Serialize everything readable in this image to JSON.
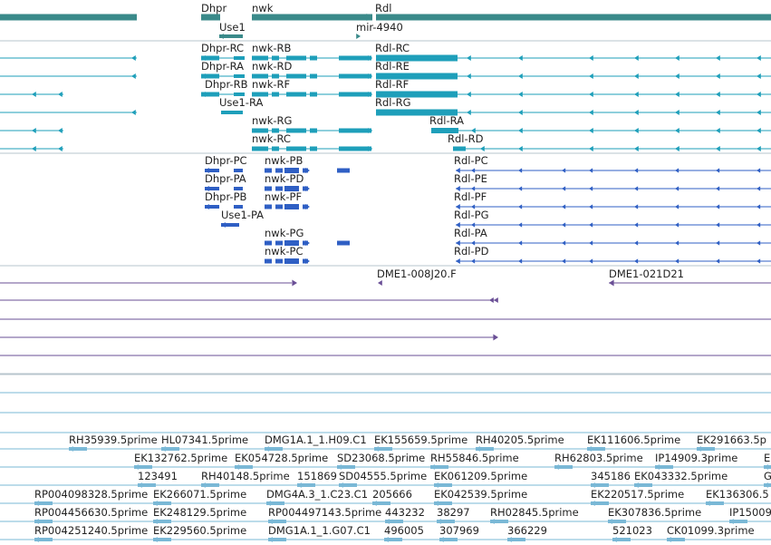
{
  "colors": {
    "gene": "#3a8a8a",
    "mrna": "#1e9fba",
    "cds": "#2f5fc4",
    "clone": "#6a4f96",
    "est": "#7ab8d6",
    "divider": "#b7c4cc"
  },
  "genes": [
    {
      "label": "Dhpr"
    },
    {
      "label": "nwk"
    },
    {
      "label": "Rdl"
    },
    {
      "label": "Use1"
    },
    {
      "label": "mir-4940"
    }
  ],
  "transcripts": [
    {
      "label": "Dhpr-RC"
    },
    {
      "label": "nwk-RB"
    },
    {
      "label": "Rdl-RC"
    },
    {
      "label": "Dhpr-RA"
    },
    {
      "label": "nwk-RD"
    },
    {
      "label": "Rdl-RE"
    },
    {
      "label": "Dhpr-RB"
    },
    {
      "label": "nwk-RF"
    },
    {
      "label": "Rdl-RF"
    },
    {
      "label": "Use1-RA"
    },
    {
      "label": "Rdl-RG"
    },
    {
      "label": "nwk-RG"
    },
    {
      "label": "Rdl-RA"
    },
    {
      "label": "nwk-RC"
    },
    {
      "label": "Rdl-RD"
    }
  ],
  "proteins": [
    {
      "label": "Dhpr-PC"
    },
    {
      "label": "nwk-PB"
    },
    {
      "label": "Rdl-PC"
    },
    {
      "label": "Dhpr-PA"
    },
    {
      "label": "nwk-PD"
    },
    {
      "label": "Rdl-PE"
    },
    {
      "label": "Dhpr-PB"
    },
    {
      "label": "nwk-PF"
    },
    {
      "label": "Rdl-PF"
    },
    {
      "label": "Use1-PA"
    },
    {
      "label": "Rdl-PG"
    },
    {
      "label": "nwk-PG"
    },
    {
      "label": "Rdl-PA"
    },
    {
      "label": "nwk-PC"
    },
    {
      "label": "Rdl-PD"
    }
  ],
  "clones": [
    {
      "label": "DME1-008J20.F"
    },
    {
      "label": "DME1-021D21"
    }
  ],
  "ests": [
    {
      "label": "RH35939.5prime"
    },
    {
      "label": "HL07341.5prime"
    },
    {
      "label": "DMG1A.1_1.H09.C1"
    },
    {
      "label": "EK155659.5prime"
    },
    {
      "label": "RH40205.5prime"
    },
    {
      "label": "EK111606.5prime"
    },
    {
      "label": "EK291663.5p"
    },
    {
      "label": "EK132762.5prime"
    },
    {
      "label": "EK054728.5prime"
    },
    {
      "label": "SD23068.5prime"
    },
    {
      "label": "RH55846.5prime"
    },
    {
      "label": "RH62803.5prime"
    },
    {
      "label": "IP14909.3prime"
    },
    {
      "label": "EK"
    },
    {
      "label": "123491"
    },
    {
      "label": "RH40148.5prime"
    },
    {
      "label": "151869"
    },
    {
      "label": "SD04555.5prime"
    },
    {
      "label": "EK061209.5prime"
    },
    {
      "label": "345186"
    },
    {
      "label": "EK043332.5prime"
    },
    {
      "label": "G"
    },
    {
      "label": "RP004098328.5prime"
    },
    {
      "label": "EK266071.5prime"
    },
    {
      "label": "DMG4A.3_1.C23.C1"
    },
    {
      "label": "205666"
    },
    {
      "label": "EK042539.5prime"
    },
    {
      "label": "EK220517.5prime"
    },
    {
      "label": "EK136306.5"
    },
    {
      "label": "RP004456630.5prime"
    },
    {
      "label": "EK248129.5prime"
    },
    {
      "label": "RP004497143.5prime"
    },
    {
      "label": "443232"
    },
    {
      "label": "38297"
    },
    {
      "label": "RH02845.5prime"
    },
    {
      "label": "EK307836.5prime"
    },
    {
      "label": "IP15009"
    },
    {
      "label": "RP004251240.5prime"
    },
    {
      "label": "EK229560.5prime"
    },
    {
      "label": "DMG1A.1_1.G07.C1"
    },
    {
      "label": "496005"
    },
    {
      "label": "307969"
    },
    {
      "label": "366229"
    },
    {
      "label": "521023"
    },
    {
      "label": "CK01099.3prime"
    }
  ]
}
